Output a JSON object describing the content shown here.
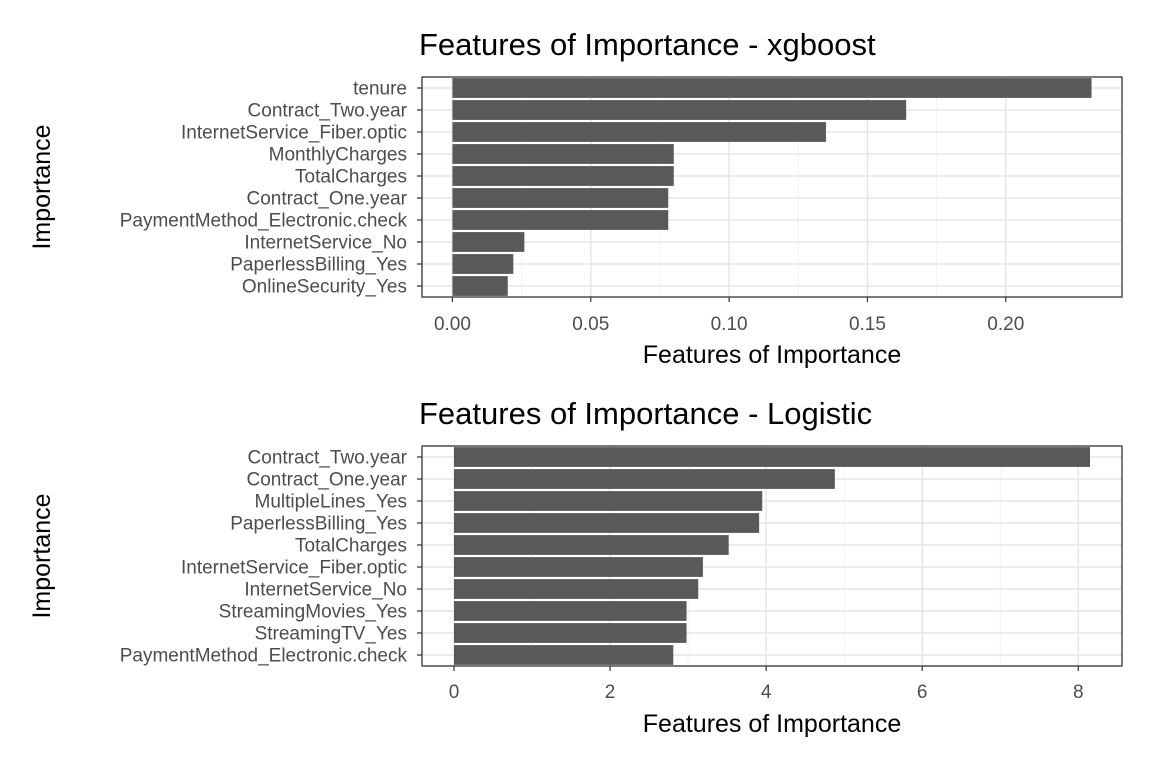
{
  "chart_data": [
    {
      "type": "bar",
      "orientation": "horizontal",
      "title": "Features of Importance - xgboost",
      "xlabel": "Features of Importance",
      "ylabel": "Importance",
      "categories": [
        "tenure",
        "Contract_Two.year",
        "InternetService_Fiber.optic",
        "MonthlyCharges",
        "TotalCharges",
        "Contract_One.year",
        "PaymentMethod_Electronic.check",
        "InternetService_No",
        "PaperlessBilling_Yes",
        "OnlineSecurity_Yes"
      ],
      "values": [
        0.231,
        0.164,
        0.135,
        0.08,
        0.08,
        0.078,
        0.078,
        0.026,
        0.022,
        0.02
      ],
      "xlim": [
        -0.011,
        0.242
      ],
      "xticks": [
        0.0,
        0.05,
        0.1,
        0.15,
        0.2
      ],
      "xtick_labels": [
        "0.00",
        "0.05",
        "0.10",
        "0.15",
        "0.20"
      ],
      "grid": true,
      "bar_color": "#595959"
    },
    {
      "type": "bar",
      "orientation": "horizontal",
      "title": "Features of Importance - Logistic",
      "xlabel": "Features of Importance",
      "ylabel": "Importance",
      "categories": [
        "Contract_Two.year",
        "Contract_One.year",
        "MultipleLines_Yes",
        "PaperlessBilling_Yes",
        "TotalCharges",
        "InternetService_Fiber.optic",
        "InternetService_No",
        "StreamingMovies_Yes",
        "StreamingTV_Yes",
        "PaymentMethod_Electronic.check"
      ],
      "values": [
        8.15,
        4.88,
        3.95,
        3.91,
        3.52,
        3.19,
        3.13,
        2.98,
        2.98,
        2.81
      ],
      "xlim": [
        -0.41,
        8.56
      ],
      "xticks": [
        0,
        2,
        4,
        6,
        8
      ],
      "xtick_labels": [
        "0",
        "2",
        "4",
        "6",
        "8"
      ],
      "grid": true,
      "bar_color": "#595959"
    }
  ]
}
